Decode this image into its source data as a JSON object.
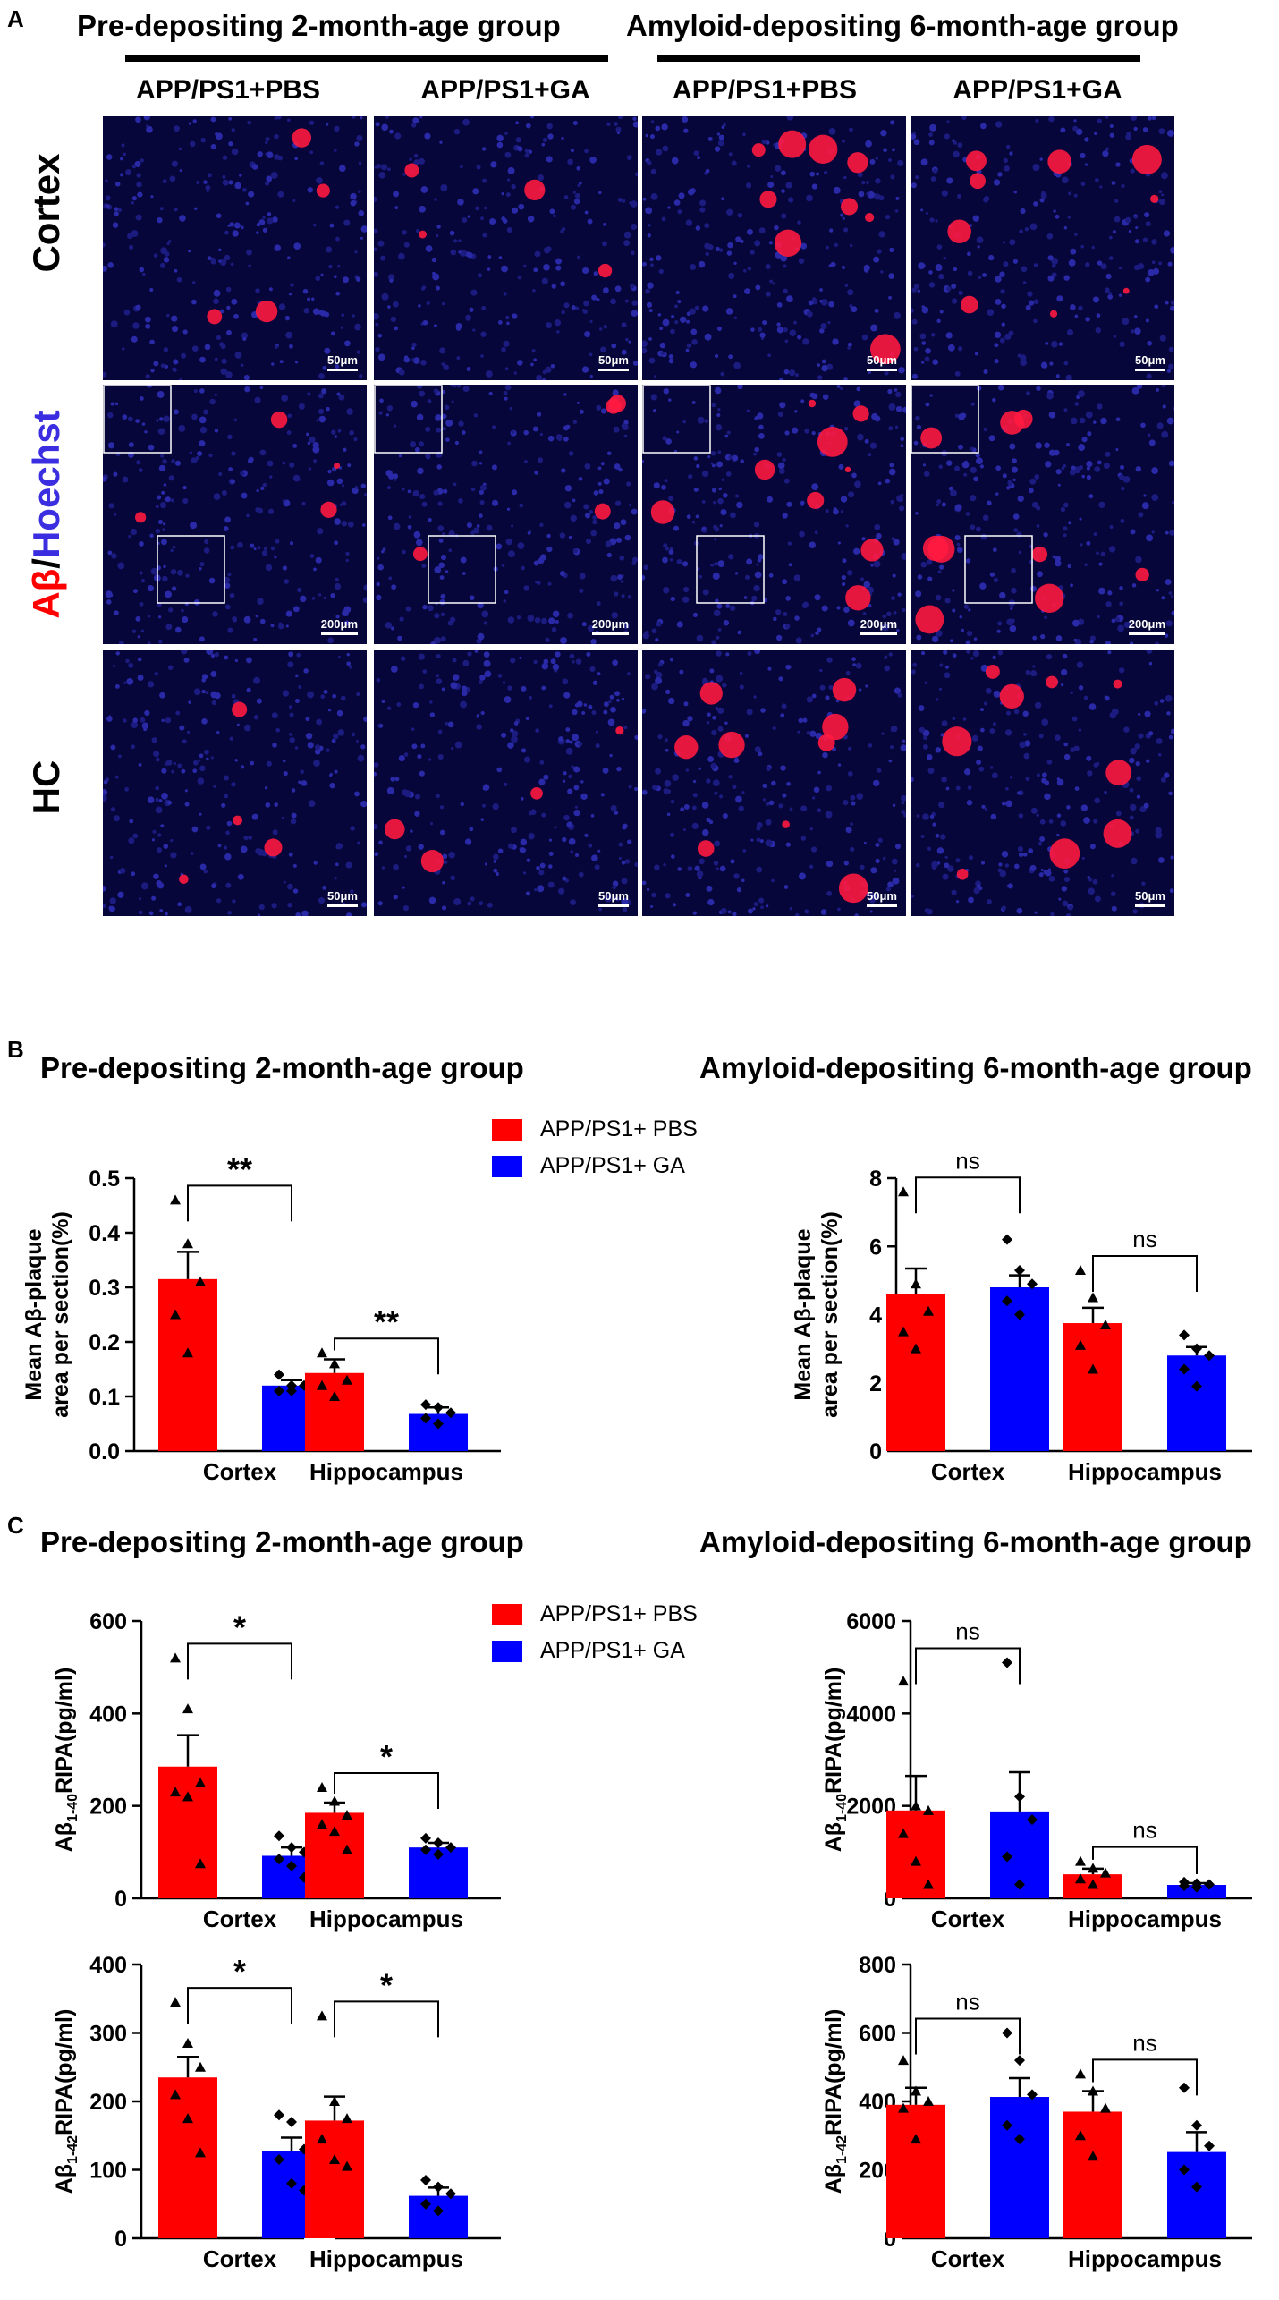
{
  "panel_labels": {
    "a": "A",
    "b": "B",
    "c": "C"
  },
  "microscopy": {
    "group_titles": [
      "Pre-depositing 2-month-age group",
      "Amyloid-depositing 6-month-age group"
    ],
    "column_labels": [
      "APP/PS1+PBS",
      "APP/PS1+GA",
      "APP/PS1+PBS",
      "APP/PS1+GA"
    ],
    "row_labels": {
      "cortex": "Cortex",
      "hc": "HC"
    },
    "stain_label": {
      "a_beta": "Aβ",
      "slash": "/",
      "hoechst": "Hoechst"
    },
    "scale_bars": {
      "row1": "50μm",
      "row2": "200μm",
      "row3": "50μm"
    }
  },
  "colors": {
    "pbs": "#ff0000",
    "ga": "#0000ff",
    "hoechst": "#3b2ee0",
    "tile_bg": "#06063a"
  },
  "legend": {
    "pbs": "APP/PS1+ PBS",
    "ga": "APP/PS1+ GA"
  },
  "chart_data": [
    {
      "type": "bar",
      "title": "Pre-depositing 2-month-age group",
      "ylabel": "Mean Aβ-plaque area per section(%)",
      "ylabel_lines": [
        "Mean Aβ-plaque",
        "area per section(%)"
      ],
      "categories": [
        "Cortex",
        "Hippocampus"
      ],
      "ylim": [
        0,
        0.5
      ],
      "yticks": [
        "0.0",
        "0.1",
        "0.2",
        "0.3",
        "0.4",
        "0.5"
      ],
      "series": [
        {
          "name": "APP/PS1+ PBS",
          "values": [
            0.315,
            0.143
          ],
          "errors": [
            0.05,
            0.025
          ],
          "points": [
            [
              0.46,
              0.38,
              0.31,
              0.25,
              0.18
            ],
            [
              0.18,
              0.16,
              0.13,
              0.12,
              0.1
            ]
          ]
        },
        {
          "name": "APP/PS1+ GA",
          "values": [
            0.12,
            0.068
          ],
          "errors": [
            0.01,
            0.012
          ],
          "points": [
            [
              0.14,
              0.12,
              0.12,
              0.11,
              0.11
            ],
            [
              0.085,
              0.08,
              0.07,
              0.06,
              0.05
            ]
          ]
        }
      ],
      "significance": [
        "**",
        "**"
      ]
    },
    {
      "type": "bar",
      "title": "Amyloid-depositing 6-month-age group",
      "ylabel": "Mean Aβ-plaque area per section(%)",
      "ylabel_lines": [
        "Mean Aβ-plaque",
        "area per section(%)"
      ],
      "categories": [
        "Cortex",
        "Hippocampus"
      ],
      "ylim": [
        0,
        8
      ],
      "yticks": [
        "0",
        "2",
        "4",
        "6",
        "8"
      ],
      "series": [
        {
          "name": "APP/PS1+ PBS",
          "values": [
            4.6,
            3.75
          ],
          "errors": [
            0.75,
            0.45
          ],
          "points": [
            [
              7.6,
              4.9,
              4.1,
              3.5,
              3.0
            ],
            [
              5.3,
              4.5,
              3.7,
              3.1,
              2.4
            ]
          ]
        },
        {
          "name": "APP/PS1+ GA",
          "values": [
            4.8,
            2.8
          ],
          "errors": [
            0.35,
            0.25
          ],
          "points": [
            [
              6.2,
              5.3,
              4.9,
              4.4,
              4.0
            ],
            [
              3.4,
              3.0,
              2.8,
              2.4,
              1.9
            ]
          ]
        }
      ],
      "significance": [
        "ns",
        "ns"
      ]
    },
    {
      "type": "bar",
      "title": "Pre-depositing 2-month-age group",
      "ylabel": "Aβ1-40RIPA(pg/ml)",
      "ylabel_parts": [
        "Aβ",
        "1-40",
        "RIPA(pg/ml)"
      ],
      "categories": [
        "Cortex",
        "Hippocampus"
      ],
      "ylim": [
        0,
        600
      ],
      "yticks": [
        "0",
        "200",
        "400",
        "600"
      ],
      "series": [
        {
          "name": "APP/PS1+ PBS",
          "values": [
            285,
            185
          ],
          "errors": [
            68,
            22
          ],
          "points": [
            [
              520,
              410,
              250,
              230,
              220,
              75
            ],
            [
              240,
              210,
              180,
              160,
              145,
              105
            ]
          ]
        },
        {
          "name": "APP/PS1+ GA",
          "values": [
            92,
            110
          ],
          "errors": [
            18,
            10
          ],
          "points": [
            [
              135,
              110,
              100,
              85,
              70,
              45
            ],
            [
              130,
              120,
              110,
              105,
              95
            ]
          ]
        }
      ],
      "significance": [
        "*",
        "*"
      ]
    },
    {
      "type": "bar",
      "title": "Amyloid-depositing 6-month-age group",
      "ylabel": "Aβ1-40RIPA(pg/ml)",
      "ylabel_parts": [
        "Aβ",
        "1-40",
        "RIPA(pg/ml)"
      ],
      "categories": [
        "Cortex",
        "Hippocampus"
      ],
      "ylim": [
        0,
        6000
      ],
      "yticks": [
        "0",
        "2000",
        "4000",
        "6000"
      ],
      "series": [
        {
          "name": "APP/PS1+ PBS",
          "values": [
            1900,
            520
          ],
          "errors": [
            750,
            120
          ],
          "points": [
            [
              4700,
              2000,
              1900,
              1400,
              800,
              300
            ],
            [
              800,
              650,
              550,
              420,
              300
            ]
          ]
        },
        {
          "name": "APP/PS1+ GA",
          "values": [
            1880,
            290
          ],
          "errors": [
            850,
            40
          ],
          "points": [
            [
              5100,
              2200,
              1700,
              900,
              300
            ],
            [
              350,
              320,
              300,
              270,
              240
            ]
          ]
        }
      ],
      "significance": [
        "ns",
        "ns"
      ]
    },
    {
      "type": "bar",
      "title": "",
      "ylabel": "Aβ1-42RIPA(pg/ml)",
      "ylabel_parts": [
        "Aβ",
        "1-42",
        "RIPA(pg/ml)"
      ],
      "categories": [
        "Cortex",
        "Hippocampus"
      ],
      "ylim": [
        0,
        400
      ],
      "yticks": [
        "0",
        "100",
        "200",
        "300",
        "400"
      ],
      "series": [
        {
          "name": "APP/PS1+ PBS",
          "values": [
            235,
            172
          ],
          "errors": [
            30,
            35
          ],
          "points": [
            [
              345,
              285,
              250,
              210,
              175,
              125
            ],
            [
              325,
              200,
              175,
              145,
              115,
              105
            ]
          ]
        },
        {
          "name": "APP/PS1+ GA",
          "values": [
            127,
            62
          ],
          "errors": [
            20,
            12
          ],
          "points": [
            [
              180,
              170,
              130,
              115,
              80,
              70
            ],
            [
              85,
              75,
              65,
              50,
              40
            ]
          ]
        }
      ],
      "significance": [
        "*",
        "*"
      ]
    },
    {
      "type": "bar",
      "title": "",
      "ylabel": "Aβ1-42RIPA(pg/ml)",
      "ylabel_parts": [
        "Aβ",
        "1-42",
        "RIPA(pg/ml)"
      ],
      "categories": [
        "Cortex",
        "Hippocampus"
      ],
      "ylim": [
        0,
        800
      ],
      "yticks": [
        "0",
        "200",
        "400",
        "600",
        "800"
      ],
      "series": [
        {
          "name": "APP/PS1+ PBS",
          "values": [
            390,
            370
          ],
          "errors": [
            50,
            60
          ],
          "points": [
            [
              520,
              430,
              400,
              380,
              290
            ],
            [
              480,
              430,
              380,
              300,
              240
            ]
          ]
        },
        {
          "name": "APP/PS1+ GA",
          "values": [
            413,
            252
          ],
          "errors": [
            55,
            58
          ],
          "points": [
            [
              600,
              520,
              420,
              330,
              290
            ],
            [
              440,
              330,
              270,
              200,
              150
            ]
          ]
        }
      ],
      "significance": [
        "ns",
        "ns"
      ]
    }
  ]
}
